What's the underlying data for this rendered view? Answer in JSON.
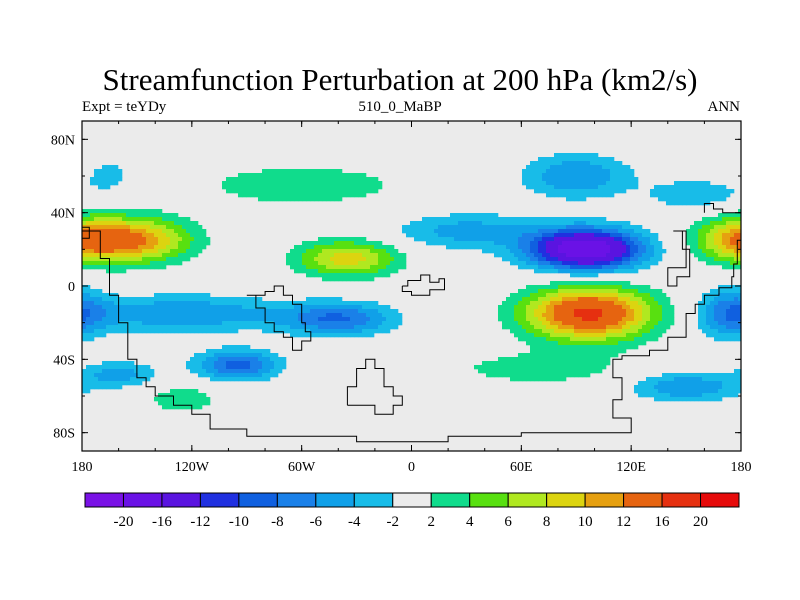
{
  "chart_data": {
    "type": "heatmap",
    "title": "Streamfunction Perturbation at 200 hPa (km2/s)",
    "subtitle_left": "Expt = teYDy",
    "subtitle_center": "510_0_MaBP",
    "subtitle_right": "ANN",
    "xlabel": "",
    "ylabel": "",
    "xlim": [
      -180,
      180
    ],
    "ylim": [
      -90,
      90
    ],
    "x_ticks": [
      {
        "value": -180,
        "label": "180"
      },
      {
        "value": -120,
        "label": "120W"
      },
      {
        "value": -60,
        "label": "60W"
      },
      {
        "value": 0,
        "label": "0"
      },
      {
        "value": 60,
        "label": "60E"
      },
      {
        "value": 120,
        "label": "120E"
      },
      {
        "value": 180,
        "label": "180"
      }
    ],
    "y_ticks": [
      {
        "value": 80,
        "label": "80N"
      },
      {
        "value": 40,
        "label": "40N"
      },
      {
        "value": 0,
        "label": "0"
      },
      {
        "value": -40,
        "label": "40S"
      },
      {
        "value": -80,
        "label": "80S"
      }
    ],
    "colorbar": {
      "colors": [
        "#7a12e6",
        "#6a12e6",
        "#5a14e0",
        "#2030e0",
        "#1060e0",
        "#1a80e8",
        "#10a0e8",
        "#18bce8",
        "#ebebeb",
        "#10dc8c",
        "#58e010",
        "#b0e820",
        "#dcd410",
        "#e6a010",
        "#e66410",
        "#e63010",
        "#e60a0a"
      ],
      "levels": [
        -20,
        -16,
        -12,
        -10,
        -8,
        -6,
        -4,
        -2,
        2,
        4,
        6,
        8,
        10,
        12,
        16,
        20
      ],
      "labels": [
        "-20",
        "-16",
        "-12",
        "-10",
        "-8",
        "-6",
        "-4",
        "-2",
        "2",
        "4",
        "6",
        "8",
        "10",
        "12",
        "16",
        "20"
      ]
    },
    "field_features": [
      {
        "lon": -150,
        "lat": 25,
        "peak": 11,
        "lon_halfwidth": 30,
        "lat_halfwidth": 12
      },
      {
        "lon": 180,
        "lat": 25,
        "peak": 10,
        "lon_halfwidth": 25,
        "lat_halfwidth": 12
      },
      {
        "lon": -35,
        "lat": 15,
        "peak": 9,
        "lon_halfwidth": 28,
        "lat_halfwidth": 10
      },
      {
        "lon": -60,
        "lat": 55,
        "peak": 3,
        "lon_halfwidth": 70,
        "lat_halfwidth": 14
      },
      {
        "lon": 95,
        "lat": 20,
        "peak": -20,
        "lon_halfwidth": 30,
        "lat_halfwidth": 11
      },
      {
        "lon": 30,
        "lat": 30,
        "peak": -5,
        "lon_halfwidth": 40,
        "lat_halfwidth": 10
      },
      {
        "lon": 90,
        "lat": 60,
        "peak": -6,
        "lon_halfwidth": 30,
        "lat_halfwidth": 12
      },
      {
        "lon": -165,
        "lat": 60,
        "peak": -3,
        "lon_halfwidth": 15,
        "lat_halfwidth": 10
      },
      {
        "lon": 97,
        "lat": -15,
        "peak": 17,
        "lon_halfwidth": 34,
        "lat_halfwidth": 14
      },
      {
        "lon": 70,
        "lat": -45,
        "peak": 3,
        "lon_halfwidth": 55,
        "lat_halfwidth": 10
      },
      {
        "lon": -125,
        "lat": -15,
        "peak": -6,
        "lon_halfwidth": 55,
        "lat_halfwidth": 10
      },
      {
        "lon": -40,
        "lat": -18,
        "peak": -8,
        "lon_halfwidth": 30,
        "lat_halfwidth": 9
      },
      {
        "lon": -95,
        "lat": -43,
        "peak": -9,
        "lon_halfwidth": 22,
        "lat_halfwidth": 8
      },
      {
        "lon": -160,
        "lat": -48,
        "peak": -5,
        "lon_halfwidth": 20,
        "lat_halfwidth": 7
      },
      {
        "lon": 150,
        "lat": -55,
        "peak": -6,
        "lon_halfwidth": 30,
        "lat_halfwidth": 8
      },
      {
        "lon": 175,
        "lat": -15,
        "peak": -7,
        "lon_halfwidth": 18,
        "lat_halfwidth": 14
      },
      {
        "lon": 155,
        "lat": 50,
        "peak": -4,
        "lon_halfwidth": 25,
        "lat_halfwidth": 8
      },
      {
        "lon": -125,
        "lat": -62,
        "peak": 4,
        "lon_halfwidth": 18,
        "lat_halfwidth": 7
      }
    ],
    "continent_outlines": [
      {
        "name": "america",
        "points": [
          [
            -180,
            30
          ],
          [
            -170,
            30
          ],
          [
            -170,
            15
          ],
          [
            -165,
            15
          ],
          [
            -165,
            -5
          ],
          [
            -160,
            -5
          ],
          [
            -160,
            -20
          ],
          [
            -155,
            -20
          ],
          [
            -155,
            -40
          ],
          [
            -150,
            -40
          ],
          [
            -150,
            -50
          ],
          [
            -145,
            -50
          ],
          [
            -145,
            -55
          ],
          [
            -140,
            -55
          ],
          [
            -140,
            -60
          ],
          [
            -130,
            -60
          ],
          [
            -130,
            -65
          ],
          [
            -120,
            -65
          ],
          [
            -120,
            -70
          ],
          [
            -110,
            -70
          ],
          [
            -110,
            -78
          ],
          [
            -90,
            -78
          ],
          [
            -90,
            -82
          ],
          [
            -30,
            -82
          ],
          [
            -30,
            -85
          ],
          [
            20,
            -85
          ],
          [
            20,
            -82
          ],
          [
            60,
            -82
          ],
          [
            60,
            -80
          ],
          [
            120,
            -80
          ],
          [
            120,
            -72
          ],
          [
            110,
            -72
          ],
          [
            110,
            -62
          ],
          [
            115,
            -62
          ],
          [
            115,
            -50
          ],
          [
            110,
            -50
          ],
          [
            110,
            -40
          ],
          [
            115,
            -40
          ],
          [
            115,
            -38
          ],
          [
            130,
            -38
          ],
          [
            130,
            -35
          ],
          [
            140,
            -35
          ],
          [
            140,
            -28
          ],
          [
            150,
            -28
          ],
          [
            150,
            -15
          ],
          [
            155,
            -15
          ],
          [
            155,
            -10
          ],
          [
            160,
            -10
          ],
          [
            160,
            -5
          ],
          [
            168,
            -5
          ],
          [
            168,
            -1
          ],
          [
            175,
            -1
          ],
          [
            175,
            5
          ],
          [
            176,
            5
          ],
          [
            176,
            12
          ],
          [
            178,
            12
          ],
          [
            178,
            25
          ],
          [
            180,
            25
          ]
        ]
      },
      {
        "name": "island-nw",
        "points": [
          [
            -180,
            32
          ],
          [
            -176,
            32
          ],
          [
            -176,
            26
          ],
          [
            -180,
            26
          ]
        ]
      },
      {
        "name": "africa",
        "points": [
          [
            -90,
            -5
          ],
          [
            -85,
            -5
          ],
          [
            -85,
            -12
          ],
          [
            -80,
            -12
          ],
          [
            -80,
            -20
          ],
          [
            -75,
            -20
          ],
          [
            -75,
            -25
          ],
          [
            -70,
            -25
          ],
          [
            -70,
            -28
          ],
          [
            -65,
            -28
          ],
          [
            -65,
            -35
          ],
          [
            -60,
            -35
          ],
          [
            -60,
            -30
          ],
          [
            -55,
            -30
          ],
          [
            -55,
            -25
          ],
          [
            -58,
            -25
          ],
          [
            -58,
            -20
          ],
          [
            -60,
            -20
          ],
          [
            -60,
            -10
          ],
          [
            -65,
            -10
          ],
          [
            -65,
            -5
          ],
          [
            -70,
            -5
          ],
          [
            -70,
            0
          ],
          [
            -75,
            0
          ],
          [
            -75,
            -3
          ],
          [
            -80,
            -3
          ],
          [
            -80,
            -5
          ],
          [
            -85,
            -5
          ]
        ]
      },
      {
        "name": "india",
        "points": [
          [
            -5,
            0
          ],
          [
            -2,
            0
          ],
          [
            -2,
            3
          ],
          [
            5,
            3
          ],
          [
            5,
            6
          ],
          [
            10,
            6
          ],
          [
            10,
            2
          ],
          [
            15,
            2
          ],
          [
            15,
            4
          ],
          [
            18,
            4
          ],
          [
            18,
            -2
          ],
          [
            10,
            -2
          ],
          [
            10,
            -5
          ],
          [
            0,
            -5
          ],
          [
            0,
            -3
          ],
          [
            -5,
            -3
          ],
          [
            -5,
            0
          ]
        ]
      },
      {
        "name": "australia",
        "points": [
          [
            -35,
            -65
          ],
          [
            -20,
            -65
          ],
          [
            -20,
            -70
          ],
          [
            -10,
            -70
          ],
          [
            -10,
            -65
          ],
          [
            -5,
            -65
          ],
          [
            -5,
            -60
          ],
          [
            -10,
            -60
          ],
          [
            -10,
            -55
          ],
          [
            -15,
            -55
          ],
          [
            -15,
            -45
          ],
          [
            -20,
            -45
          ],
          [
            -20,
            -40
          ],
          [
            -25,
            -40
          ],
          [
            -25,
            -45
          ],
          [
            -30,
            -45
          ],
          [
            -30,
            -55
          ],
          [
            -35,
            -55
          ],
          [
            -35,
            -65
          ]
        ]
      },
      {
        "name": "asia-east",
        "points": [
          [
            160,
            40
          ],
          [
            160,
            45
          ],
          [
            165,
            45
          ],
          [
            165,
            42
          ],
          [
            170,
            42
          ],
          [
            170,
            40
          ],
          [
            180,
            40
          ]
        ]
      },
      {
        "name": "japan",
        "points": [
          [
            143,
            30
          ],
          [
            150,
            30
          ],
          [
            150,
            10
          ],
          [
            140,
            10
          ],
          [
            140,
            0
          ],
          [
            145,
            0
          ],
          [
            145,
            5
          ],
          [
            152,
            5
          ],
          [
            152,
            20
          ],
          [
            148,
            20
          ],
          [
            148,
            30
          ],
          [
            143,
            30
          ]
        ]
      }
    ]
  }
}
